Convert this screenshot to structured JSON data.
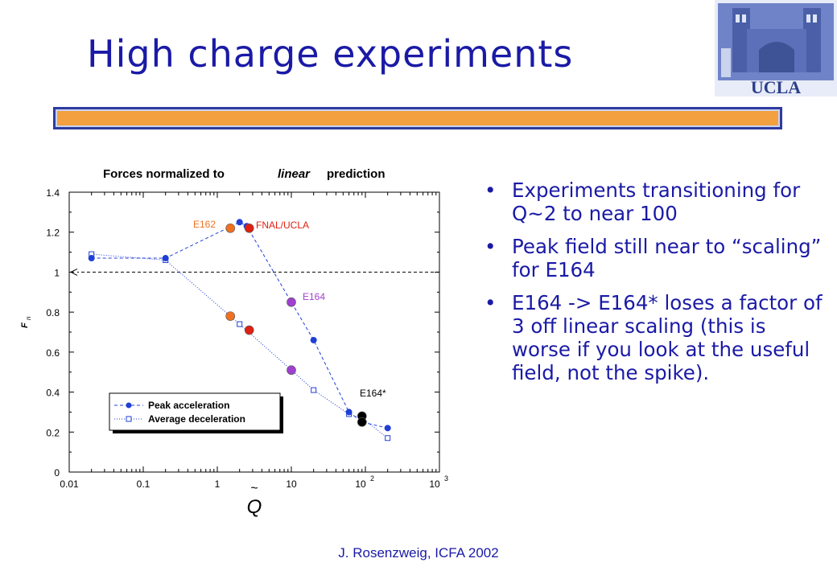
{
  "slide": {
    "title": "High charge experiments",
    "footer": "J. Rosenzweig, ICFA 2002",
    "logo_text": "UCLA",
    "bullets": [
      "Experiments transitioning for Q~2 to near 100",
      "Peak field still near to “scaling” for E164",
      "E164 -> E164* loses a factor of 3 off linear scaling (this is worse if you look at the useful field, not the spike)."
    ],
    "colors": {
      "title": "#1a1aa6",
      "accent_bar": "#f2a040",
      "accent_border": "#2f3b9e"
    }
  },
  "chart_data": {
    "type": "scatter",
    "title_parts": [
      "Forces normalized to",
      "linear",
      "prediction"
    ],
    "xscale": "log",
    "xlim": [
      0.01,
      1000
    ],
    "ylim": [
      0,
      1.4
    ],
    "x_ticks": [
      "0.01",
      "0.1",
      "1",
      "10",
      "10",
      "10"
    ],
    "x_tick_superscripts": [
      "",
      "",
      "",
      "",
      "2",
      "3"
    ],
    "y_ticks": [
      "0",
      "0.2",
      "0.4",
      "0.6",
      "0.8",
      "1",
      "1.2",
      "1.4"
    ],
    "xlabel": "Q",
    "ylabel": "F",
    "ylabel_sub": "n",
    "legend_position": "bottom-left",
    "series": [
      {
        "name": "Peak acceleration",
        "color": "#1f3fd6",
        "marker": "filled-circle",
        "line": "dashed",
        "x": [
          0.02,
          0.2,
          2,
          2.5,
          10,
          20,
          60,
          90,
          200
        ],
        "y": [
          1.07,
          1.07,
          1.25,
          1.23,
          0.85,
          0.66,
          0.3,
          0.25,
          0.22
        ]
      },
      {
        "name": "Average deceleration",
        "color": "#1f3fd6",
        "marker": "open-square",
        "line": "dotted",
        "x": [
          0.02,
          0.2,
          2,
          10,
          20,
          60,
          90,
          200
        ],
        "y": [
          1.09,
          1.06,
          0.74,
          0.51,
          0.41,
          0.29,
          0.27,
          0.17
        ]
      }
    ],
    "highlights": [
      {
        "label": "E162",
        "color": "#f07020",
        "x": 1.5,
        "y": [
          1.22,
          0.78
        ]
      },
      {
        "label": "FNAL/UCLA",
        "color": "#e02010",
        "x": 2.7,
        "y": [
          1.22,
          0.71
        ]
      },
      {
        "label": "E164",
        "color": "#a040d0",
        "x": 10,
        "y": [
          0.85,
          0.51
        ]
      },
      {
        "label": "E164*",
        "color": "#000000",
        "x": 90,
        "y": [
          0.28,
          0.25
        ]
      }
    ],
    "reference_line": {
      "y": 1
    }
  }
}
